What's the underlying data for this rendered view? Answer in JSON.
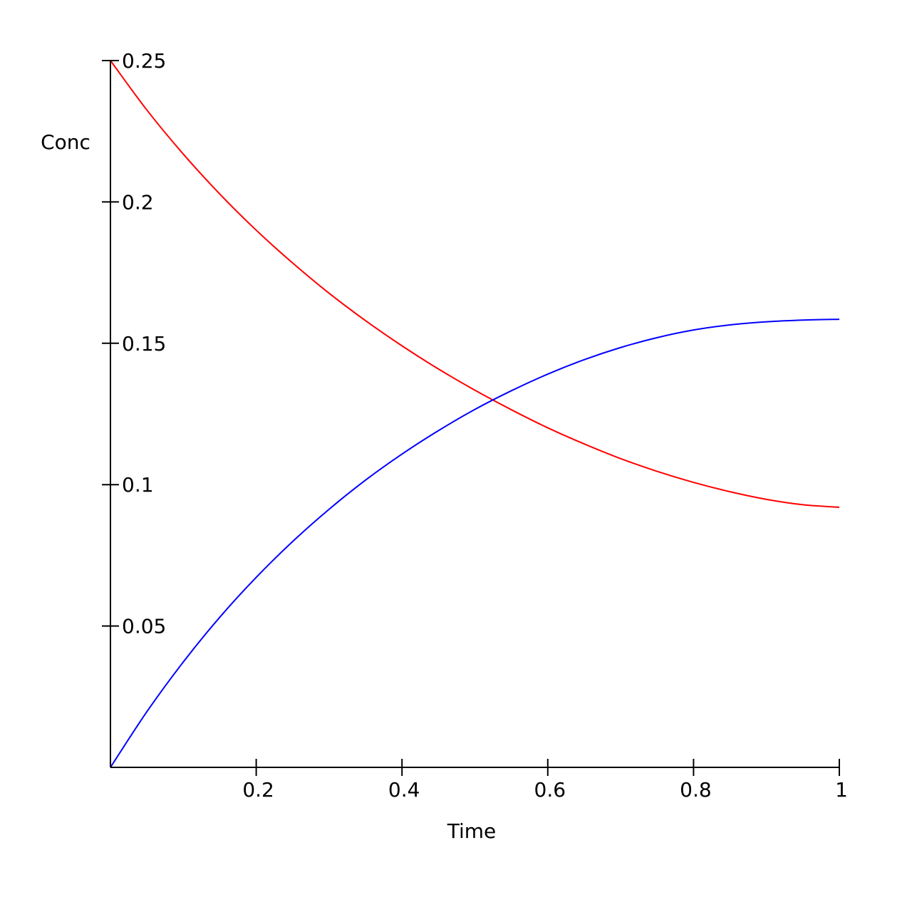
{
  "chart_data": {
    "type": "line",
    "xlabel": "Time",
    "ylabel": "Conc",
    "xlim": [
      0,
      1
    ],
    "ylim": [
      0,
      0.25
    ],
    "x_ticks": [
      0.2,
      0.4,
      0.6,
      0.8,
      1
    ],
    "x_tick_labels": [
      "0.2",
      "0.4",
      "0.6",
      "0.8",
      "1"
    ],
    "y_ticks": [
      0.05,
      0.1,
      0.15,
      0.2,
      0.25
    ],
    "y_tick_labels": [
      "0.05",
      "0.1",
      "0.15",
      "0.2",
      "0.25"
    ],
    "grid": false,
    "x": [
      0,
      0.05,
      0.1,
      0.15,
      0.2,
      0.25,
      0.3,
      0.35,
      0.4,
      0.45,
      0.5,
      0.55,
      0.6,
      0.65,
      0.7,
      0.75,
      0.8,
      0.85,
      0.9,
      0.95,
      1
    ],
    "series": [
      {
        "color": "#ff0000",
        "values": [
          0.25,
          0.2325,
          0.2169,
          0.2028,
          0.19,
          0.1784,
          0.1677,
          0.158,
          0.1491,
          0.1409,
          0.1334,
          0.1265,
          0.1201,
          0.1144,
          0.1092,
          0.1047,
          0.1008,
          0.0975,
          0.0948,
          0.0929,
          0.092
        ]
      },
      {
        "color": "#0000ff",
        "values": [
          0,
          0.0197,
          0.0373,
          0.0531,
          0.0672,
          0.0799,
          0.0913,
          0.1016,
          0.1108,
          0.1191,
          0.1266,
          0.1332,
          0.1391,
          0.1442,
          0.1485,
          0.152,
          0.1547,
          0.1565,
          0.1576,
          0.1582,
          0.1585
        ]
      }
    ]
  }
}
